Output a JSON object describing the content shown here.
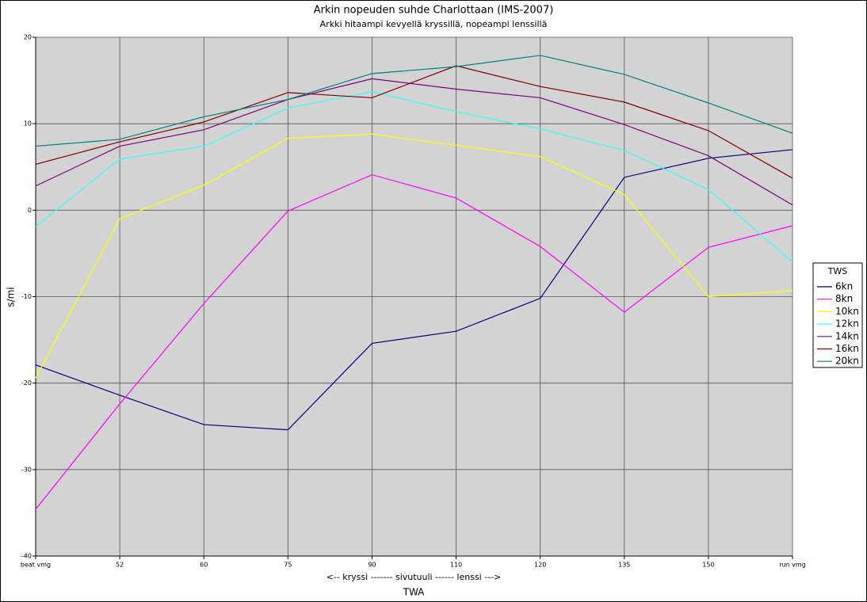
{
  "chart_data": {
    "type": "line",
    "title": "Arkin nopeuden suhde Charlottaan (IMS-2007)",
    "subtitle": "Arkki hitaampi kevyellä kryssillä, nopeampi lenssillä",
    "ylabel": "s/mi",
    "x_axis_note": "<-- kryssi ------- sivutuuli ------ lenssi --->",
    "xlabel": "TWA",
    "legend_title": "TWS",
    "legend": "right",
    "grid": true,
    "categories": [
      "beat vmg",
      "52",
      "60",
      "75",
      "90",
      "110",
      "120",
      "135",
      "150",
      "run vmg"
    ],
    "ylim": [
      -40,
      20
    ],
    "yticks": [
      -40,
      -30,
      -20,
      -10,
      0,
      10,
      20
    ],
    "series": [
      {
        "name": "6kn",
        "color": "#000080",
        "values": [
          -17.9,
          -21.4,
          -24.8,
          -25.4,
          -15.4,
          -14.0,
          -10.2,
          3.8,
          6.0,
          7.0
        ]
      },
      {
        "name": "8kn",
        "color": "#ff00ff",
        "values": [
          -34.6,
          -22.4,
          -10.8,
          -0.1,
          4.1,
          1.4,
          -4.2,
          -11.8,
          -4.3,
          -1.8
        ]
      },
      {
        "name": "10kn",
        "color": "#ffff00",
        "values": [
          -19.4,
          -1.0,
          2.9,
          8.3,
          8.8,
          7.5,
          6.2,
          1.8,
          -10.0,
          -9.3
        ]
      },
      {
        "name": "12kn",
        "color": "#33ffff",
        "values": [
          -1.9,
          5.9,
          7.4,
          11.8,
          13.7,
          11.4,
          9.4,
          6.9,
          2.4,
          -6.0
        ]
      },
      {
        "name": "14kn",
        "color": "#800080",
        "values": [
          2.8,
          7.4,
          9.3,
          12.8,
          15.2,
          14.0,
          13.0,
          9.9,
          6.3,
          0.6
        ]
      },
      {
        "name": "16kn",
        "color": "#800000",
        "values": [
          5.3,
          7.9,
          10.2,
          13.6,
          13.0,
          16.7,
          14.3,
          12.5,
          9.2,
          3.7
        ]
      },
      {
        "name": "20kn",
        "color": "#008080",
        "values": [
          7.4,
          8.2,
          10.8,
          12.8,
          15.8,
          16.6,
          17.9,
          15.7,
          12.4,
          8.9
        ]
      }
    ]
  }
}
